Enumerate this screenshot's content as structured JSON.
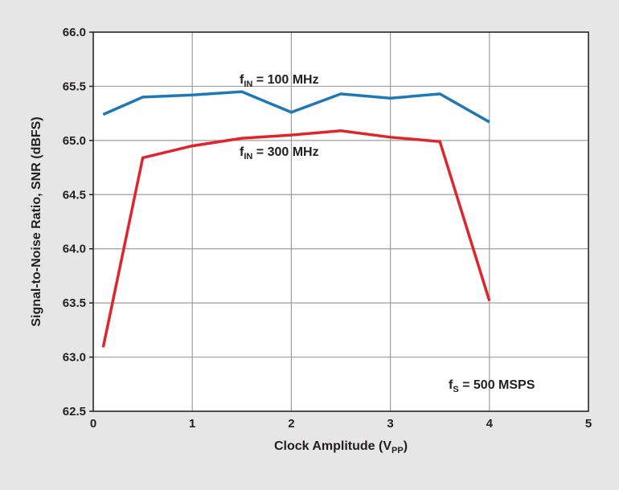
{
  "chart_data": {
    "type": "line",
    "xlabel": {
      "main": "Clock Amplitude (V",
      "sub": "PP",
      "end": ")"
    },
    "ylabel": "Signal-to-Noise Ratio, SNR (dBFS)",
    "xlim": [
      0,
      5
    ],
    "ylim": [
      62.5,
      66.0
    ],
    "xticks": [
      "0",
      "1",
      "2",
      "3",
      "4",
      "5"
    ],
    "yticks": [
      "62.5",
      "63.0",
      "63.5",
      "64.0",
      "64.5",
      "65.0",
      "65.5",
      "66.0"
    ],
    "grid": true,
    "series": [
      {
        "label": {
          "main": "f",
          "sub": "IN",
          "end": " = 100 MHz"
        },
        "color": "#1f78b4",
        "x": [
          0.1,
          0.5,
          1.0,
          1.5,
          2.0,
          2.5,
          3.0,
          3.5,
          4.0
        ],
        "y": [
          65.24,
          65.4,
          65.42,
          65.45,
          65.26,
          65.43,
          65.39,
          65.43,
          65.17
        ]
      },
      {
        "label": {
          "main": "f",
          "sub": "IN",
          "end": " = 300 MHz"
        },
        "color": "#e0242c",
        "x": [
          0.1,
          0.5,
          1.0,
          1.5,
          2.0,
          2.5,
          3.0,
          3.5,
          4.0
        ],
        "y": [
          63.09,
          64.84,
          64.95,
          65.02,
          65.05,
          65.09,
          65.03,
          64.99,
          63.52
        ]
      }
    ],
    "annotations": [
      {
        "main": "f",
        "sub": "S",
        "end": " = 500 MSPS"
      }
    ]
  }
}
